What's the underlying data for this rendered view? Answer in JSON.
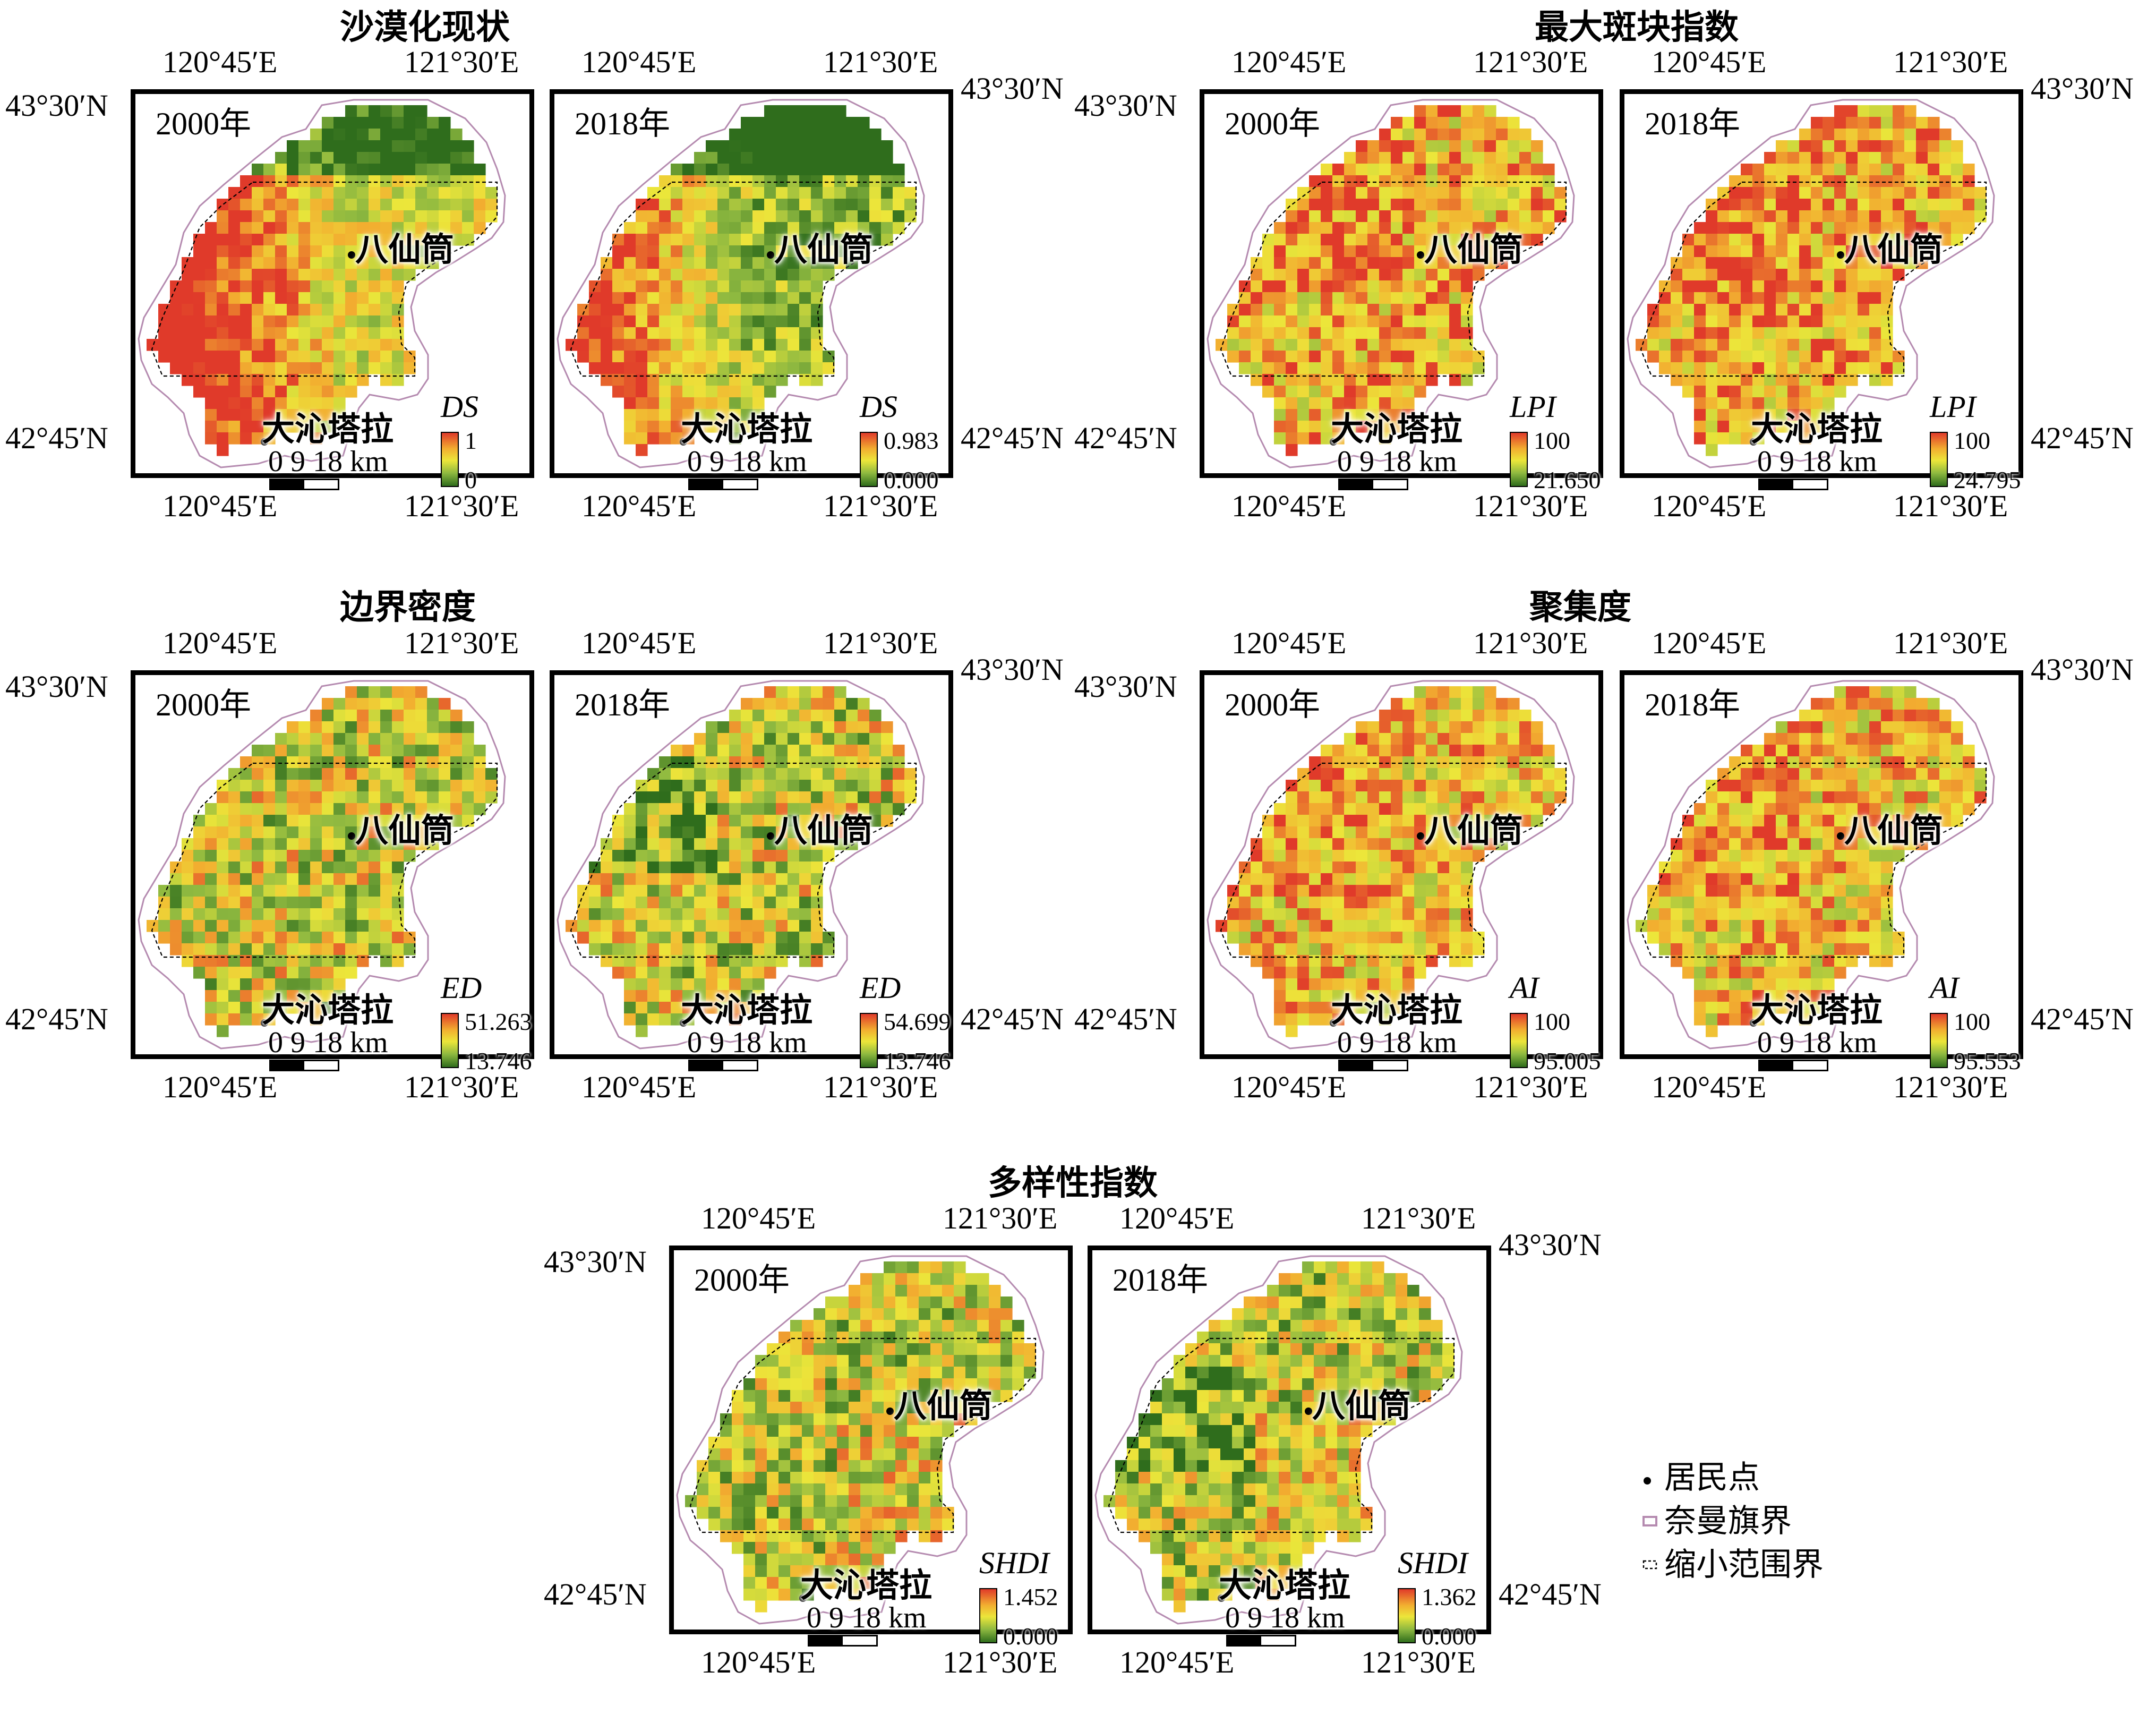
{
  "groups": [
    {
      "title": "沙漠化现状",
      "metric": "DS",
      "maps": [
        {
          "year_label": "2000年",
          "legend_max": "1",
          "legend_min": "0"
        },
        {
          "year_label": "2018年",
          "legend_max": "0.983",
          "legend_min": "0.000"
        }
      ]
    },
    {
      "title": "最大斑块指数",
      "metric": "LPI",
      "maps": [
        {
          "year_label": "2000年",
          "legend_max": "100",
          "legend_min": "21.650"
        },
        {
          "year_label": "2018年",
          "legend_max": "100",
          "legend_min": "24.795"
        }
      ]
    },
    {
      "title": "边界密度",
      "metric": "ED",
      "maps": [
        {
          "year_label": "2000年",
          "legend_max": "51.263",
          "legend_min": "13.746"
        },
        {
          "year_label": "2018年",
          "legend_max": "54.699",
          "legend_min": "13.746"
        }
      ]
    },
    {
      "title": "聚集度",
      "metric": "AI",
      "maps": [
        {
          "year_label": "2000年",
          "legend_max": "100",
          "legend_min": "95.005"
        },
        {
          "year_label": "2018年",
          "legend_max": "100",
          "legend_min": "95.553"
        }
      ]
    },
    {
      "title": "多样性指数",
      "metric": "SHDI",
      "maps": [
        {
          "year_label": "2000年",
          "legend_max": "1.452",
          "legend_min": "0.000"
        },
        {
          "year_label": "2018年",
          "legend_max": "1.362",
          "legend_min": "0.000"
        }
      ]
    }
  ],
  "coords": {
    "lon_left": "120°45′E",
    "lon_right": "121°30′E",
    "lat_top": "43°30′N",
    "lat_bottom": "42°45′N"
  },
  "places": {
    "north_town": "八仙筒",
    "south_town": "大沁塔拉"
  },
  "scale": {
    "label": "0  9 18  km"
  },
  "legend": {
    "items": [
      {
        "label": "居民点",
        "symbol": "settlement-dot"
      },
      {
        "label": "奈曼旗界",
        "symbol": "banner-boundary-line"
      },
      {
        "label": "缩小范围界",
        "symbol": "reduced-extent-dashed-line"
      }
    ]
  },
  "colors": {
    "ramp_high": "#e03a2a",
    "ramp_mid_high": "#f2ae30",
    "ramp_mid": "#ece63a",
    "ramp_mid_low": "#8db840",
    "ramp_low": "#2f6d1c",
    "boundary_line": "#b58bb0"
  }
}
